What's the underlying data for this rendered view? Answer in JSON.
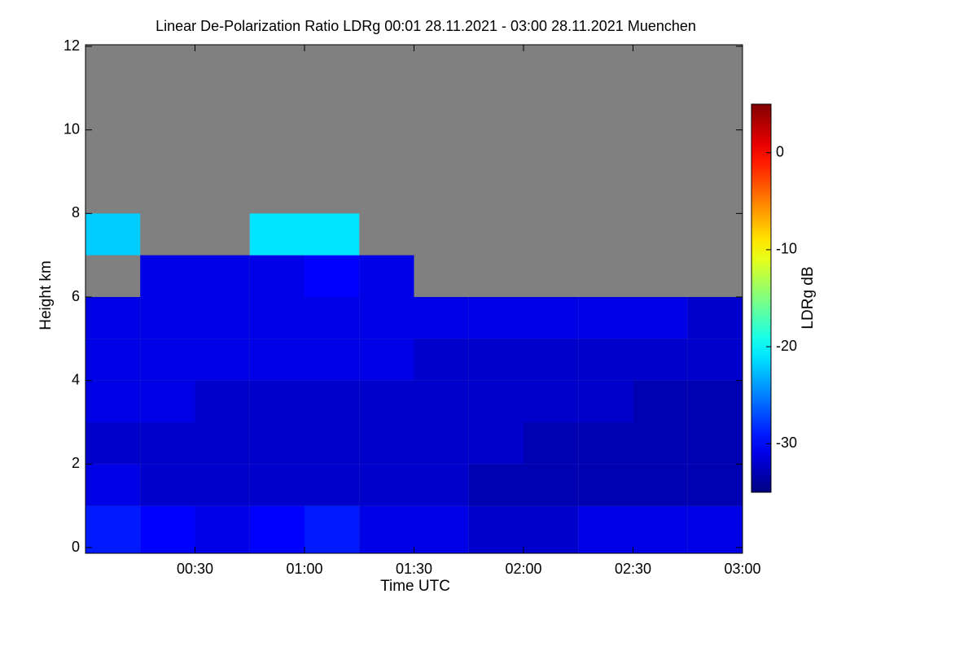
{
  "chart_data": {
    "type": "heatmap",
    "title": "Linear De-Polarization Ratio LDRg   00:01 28.11.2021 - 03:00 28.11.2021 Muenchen",
    "x_label": "Time UTC",
    "y_label": "Height km",
    "colorbar_label": "LDRg dB",
    "colormap": "jet",
    "missing_color": "#808080",
    "xlim": [
      0,
      180
    ],
    "xticks": [
      {
        "value": 30,
        "label": "00:30"
      },
      {
        "value": 60,
        "label": "01:00"
      },
      {
        "value": 90,
        "label": "01:30"
      },
      {
        "value": 120,
        "label": "02:00"
      },
      {
        "value": 150,
        "label": "02:30"
      },
      {
        "value": 180,
        "label": "03:00"
      }
    ],
    "ylim": [
      0,
      12
    ],
    "yticks": [
      0,
      2,
      4,
      6,
      8,
      10,
      12
    ],
    "zlim": [
      -35,
      5
    ],
    "zticks": [
      0,
      -10,
      -20,
      -30
    ],
    "x": [
      7.5,
      22.5,
      37.5,
      52.5,
      67.5,
      82.5,
      97.5,
      112.5,
      127.5,
      142.5,
      157.5,
      172.5
    ],
    "y": [
      0.5,
      1.5,
      2.5,
      3.5,
      4.5,
      5.5,
      6.5,
      7.5,
      8.5,
      9.5,
      10.5,
      11.5
    ],
    "z": [
      [
        -29,
        -30,
        -31,
        -30,
        -29,
        -31,
        -31,
        -32,
        -32,
        -31,
        -31,
        -31
      ],
      [
        -31,
        -32,
        -32,
        -32,
        -32,
        -32,
        -32,
        -33,
        -33,
        -33,
        -33,
        -33
      ],
      [
        -32,
        -32,
        -32,
        -32,
        -32,
        -32,
        -32,
        -32,
        -33,
        -33,
        -33,
        -33
      ],
      [
        -31,
        -31,
        -32,
        -32,
        -32,
        -32,
        -32,
        -32,
        -32,
        -32,
        -33,
        -33
      ],
      [
        -31,
        -31,
        -31,
        -31,
        -31,
        -31,
        -32,
        -32,
        -32,
        -32,
        -32,
        -32
      ],
      [
        -31,
        -31,
        -31,
        -31,
        -31,
        -31,
        -31,
        -31,
        -31,
        -31,
        -31,
        -32
      ],
      [
        null,
        -31,
        -31,
        -31,
        -30,
        -31,
        null,
        null,
        null,
        null,
        null,
        null
      ],
      [
        -22,
        null,
        null,
        -21,
        -21,
        null,
        null,
        null,
        null,
        null,
        null,
        null
      ],
      [
        null,
        null,
        null,
        null,
        null,
        null,
        null,
        null,
        null,
        null,
        null,
        null
      ],
      [
        null,
        null,
        null,
        null,
        null,
        null,
        null,
        null,
        null,
        null,
        null,
        null
      ],
      [
        null,
        null,
        null,
        null,
        null,
        null,
        null,
        null,
        null,
        null,
        null,
        null
      ],
      [
        null,
        null,
        null,
        null,
        null,
        null,
        null,
        null,
        null,
        null,
        null,
        null
      ]
    ]
  }
}
